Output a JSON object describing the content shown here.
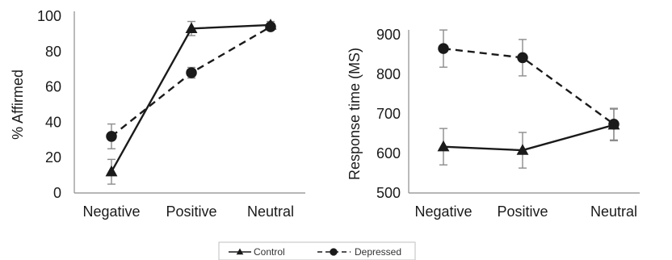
{
  "chart_data": [
    {
      "type": "line",
      "ylabel": "% Affirmed",
      "categories": [
        "Negative",
        "Positive",
        "Neutral"
      ],
      "ylim": [
        0,
        100
      ],
      "yticks": [
        0,
        20,
        40,
        60,
        80,
        100
      ],
      "grid": false,
      "series": [
        {
          "name": "Control",
          "values": [
            12,
            93,
            95
          ],
          "errors": [
            7,
            4,
            2
          ],
          "marker": "triangle",
          "dash": "solid"
        },
        {
          "name": "Depressed",
          "values": [
            32,
            68,
            94
          ],
          "errors": [
            7,
            3,
            2
          ],
          "marker": "circle",
          "dash": "dashed"
        }
      ]
    },
    {
      "type": "line",
      "ylabel": "Response time (MS)",
      "categories": [
        "Negative",
        "Positive",
        "Neutral"
      ],
      "ylim": [
        500,
        900
      ],
      "yticks": [
        500,
        600,
        700,
        800,
        900
      ],
      "grid": false,
      "series": [
        {
          "name": "Control",
          "values": [
            617,
            608,
            672
          ],
          "errors": [
            46,
            45,
            40
          ],
          "marker": "triangle",
          "dash": "solid"
        },
        {
          "name": "Depressed",
          "values": [
            865,
            842,
            674
          ],
          "errors": [
            47,
            46,
            40
          ],
          "marker": "circle",
          "dash": "dashed"
        }
      ]
    }
  ],
  "legend": {
    "position": "bottom-center",
    "items": [
      {
        "label": "Control",
        "marker": "triangle",
        "dash": "solid"
      },
      {
        "label": "Depressed",
        "marker": "circle",
        "dash": "dashed"
      }
    ]
  },
  "colors": {
    "line": "#1a1a1a",
    "error_bar": "#8c8c8c",
    "axis": "#8c8c8c",
    "legend_border": "#bfbfbf"
  }
}
